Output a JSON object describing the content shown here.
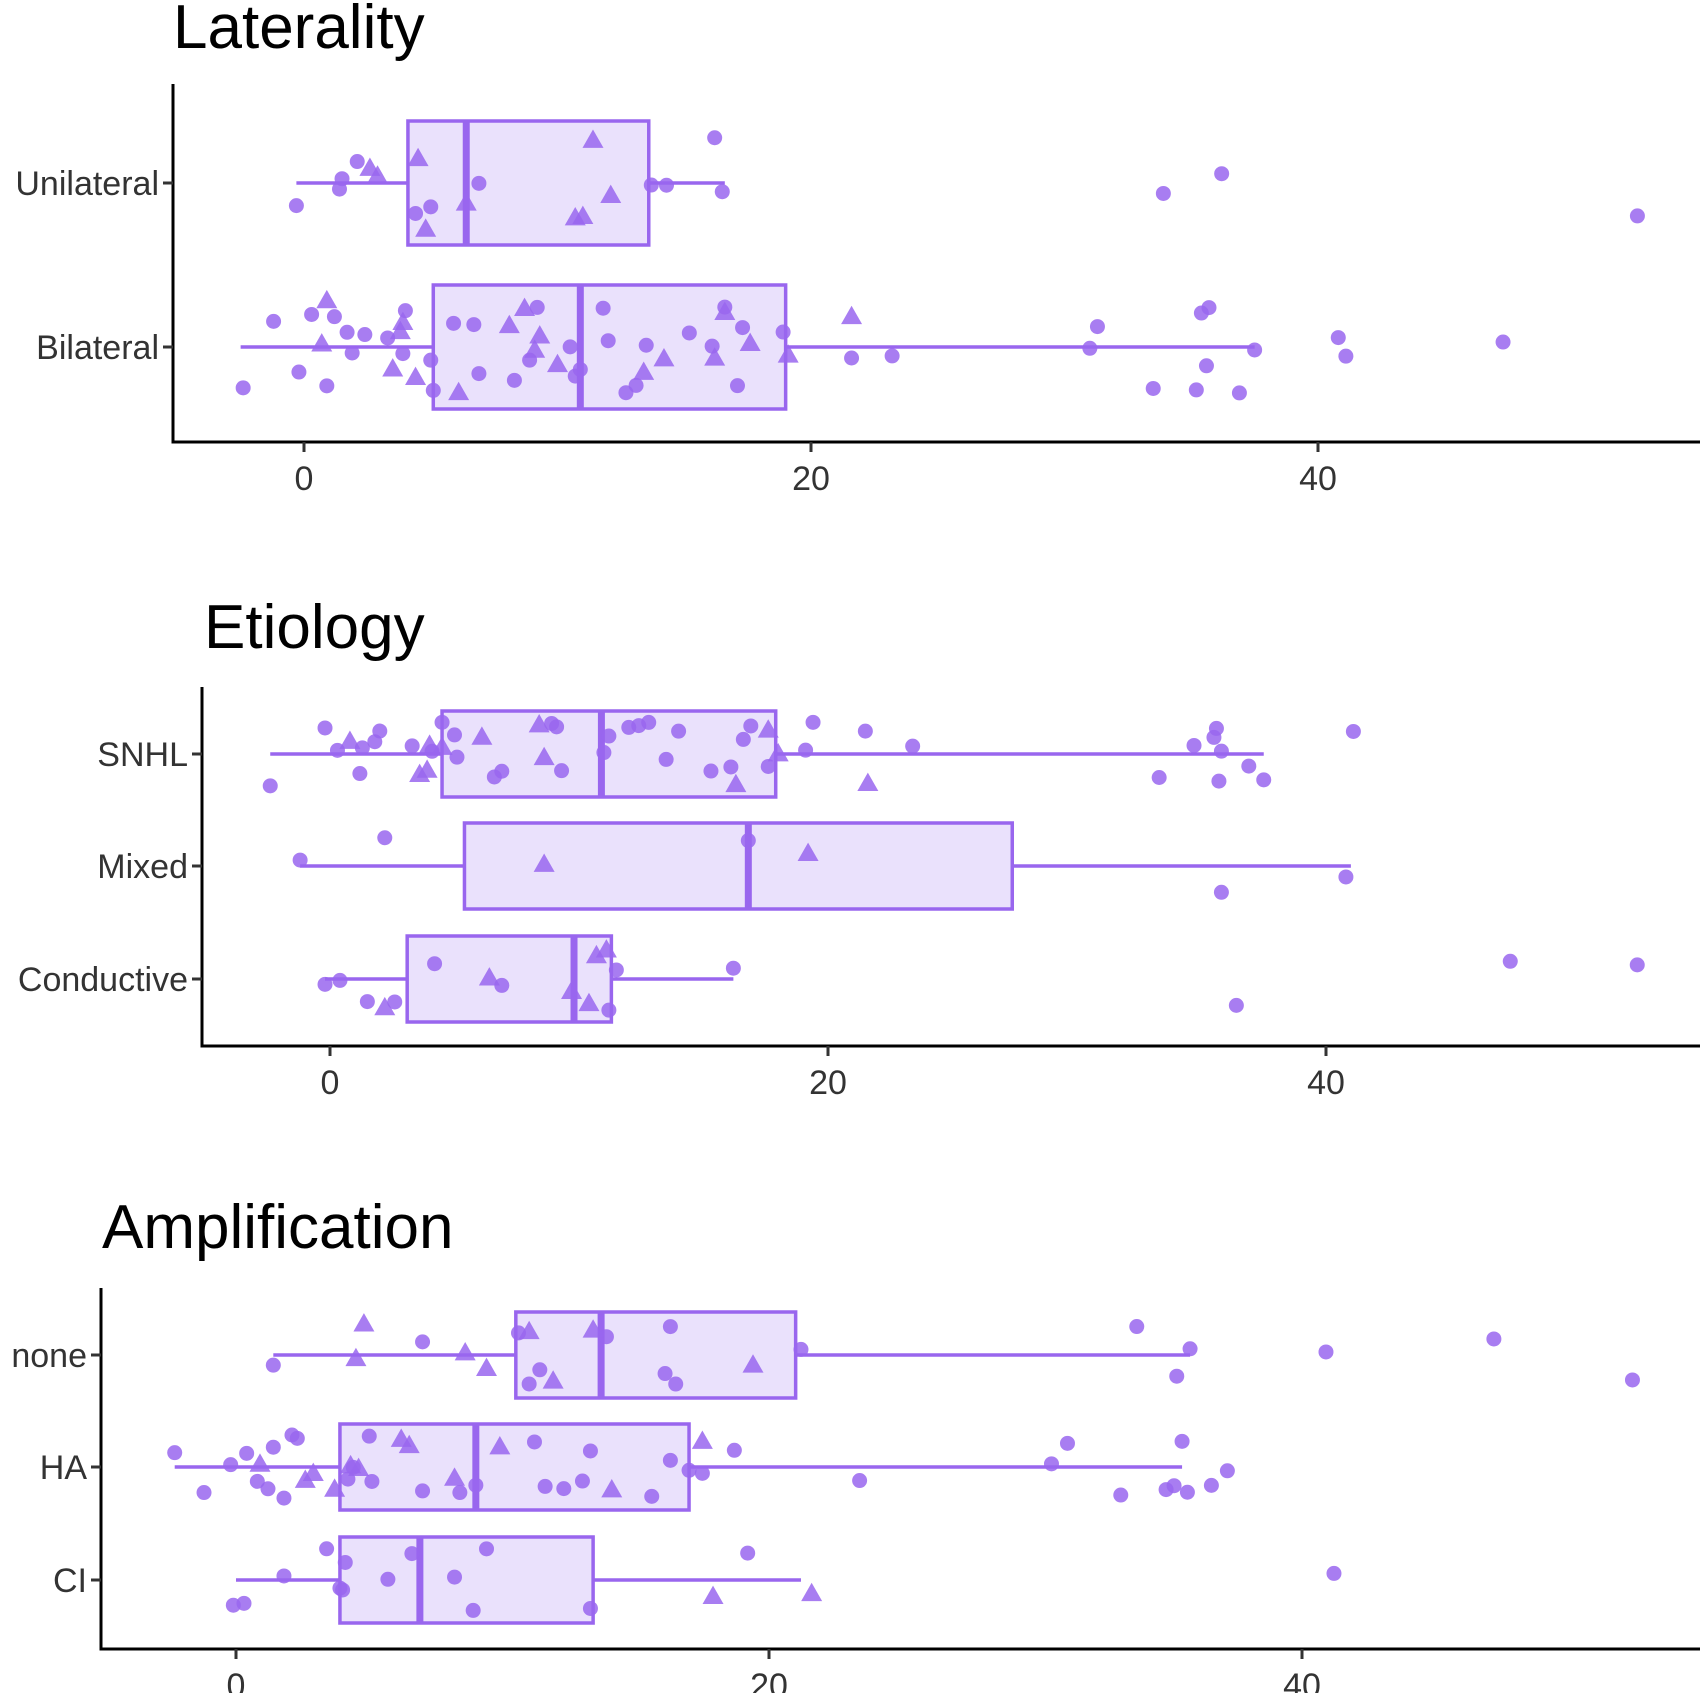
{
  "chart_data": [
    {
      "type": "boxplot",
      "title": "Laterality",
      "categories": [
        "Unilateral",
        "Bilateral"
      ],
      "xlim": [
        -5,
        55
      ],
      "xticks": [
        0,
        20,
        40
      ],
      "grid": false,
      "colors": {
        "stroke": "#9966ee",
        "fill": "#e6dcfb",
        "point": "#9966ee"
      },
      "boxes": [
        {
          "category": "Unilateral",
          "whisker_low": -0.3,
          "q1": 4.1,
          "median": 6.4,
          "q3": 13.6,
          "whisker_high": 16.6
        },
        {
          "category": "Bilateral",
          "whisker_low": -2.5,
          "q1": 5.1,
          "median": 10.9,
          "q3": 19.0,
          "whisker_high": 37.5
        }
      ],
      "points": [
        {
          "category": "Unilateral",
          "shape": "circle",
          "values": [
            -0.3,
            1.4,
            1.5,
            2.1,
            4.4,
            5.0,
            6.9,
            14.3,
            13.7,
            16.2,
            16.5,
            33.9,
            36.2,
            52.6
          ]
        },
        {
          "category": "Unilateral",
          "shape": "triangle",
          "values": [
            2.6,
            2.9,
            4.5,
            4.8,
            6.4,
            10.7,
            11.0,
            11.4,
            12.1
          ]
        },
        {
          "category": "Bilateral",
          "shape": "circle",
          "values": [
            -2.4,
            -1.2,
            -0.2,
            0.3,
            0.9,
            1.2,
            1.7,
            1.9,
            2.4,
            3.3,
            3.9,
            4.0,
            5.0,
            5.1,
            5.9,
            6.7,
            6.9,
            8.3,
            8.9,
            9.2,
            10.5,
            10.7,
            10.9,
            11.8,
            12.0,
            12.7,
            13.1,
            13.5,
            15.2,
            16.1,
            16.6,
            17.1,
            17.3,
            18.9,
            21.6,
            23.2,
            31.0,
            31.3,
            33.5,
            35.2,
            35.4,
            35.6,
            35.7,
            36.9,
            37.5,
            40.8,
            41.1,
            47.3
          ]
        },
        {
          "category": "Bilateral",
          "shape": "triangle",
          "values": [
            0.7,
            0.9,
            3.5,
            3.8,
            3.9,
            4.4,
            6.1,
            8.1,
            8.7,
            9.1,
            9.3,
            10.0,
            13.4,
            14.2,
            16.2,
            16.6,
            17.6,
            19.1,
            21.6
          ]
        }
      ]
    },
    {
      "type": "boxplot",
      "title": "Etiology",
      "categories": [
        "SNHL",
        "Mixed",
        "Conductive"
      ],
      "xlim": [
        -5,
        55
      ],
      "xticks": [
        0,
        20,
        40
      ],
      "grid": false,
      "colors": {
        "stroke": "#9966ee",
        "fill": "#e6dcfb",
        "point": "#9966ee"
      },
      "boxes": [
        {
          "category": "SNHL",
          "whisker_low": -2.4,
          "q1": 4.5,
          "median": 10.9,
          "q3": 17.9,
          "whisker_high": 37.5
        },
        {
          "category": "Mixed",
          "whisker_low": -1.2,
          "q1": 5.4,
          "median": 16.8,
          "q3": 27.4,
          "whisker_high": 41.0
        },
        {
          "category": "Conductive",
          "whisker_low": -0.2,
          "q1": 3.1,
          "median": 9.8,
          "q3": 11.3,
          "whisker_high": 16.2
        }
      ],
      "points": [
        {
          "category": "SNHL",
          "shape": "circle",
          "values": [
            -2.4,
            -0.2,
            0.3,
            1.2,
            1.3,
            1.8,
            2.0,
            3.3,
            4.1,
            4.5,
            5.0,
            5.1,
            6.6,
            6.9,
            8.9,
            9.1,
            9.3,
            11.0,
            11.2,
            12.0,
            12.4,
            12.8,
            13.5,
            14.0,
            15.3,
            16.1,
            16.6,
            16.9,
            17.6,
            19.1,
            19.4,
            21.5,
            23.4,
            33.3,
            34.7,
            35.5,
            35.6,
            35.7,
            35.8,
            36.9,
            37.5,
            41.1
          ]
        },
        {
          "category": "SNHL",
          "shape": "triangle",
          "values": [
            0.8,
            3.6,
            3.9,
            4.0,
            4.5,
            6.1,
            8.4,
            8.6,
            16.3,
            17.6,
            18.0,
            21.6
          ]
        },
        {
          "category": "Mixed",
          "shape": "circle",
          "values": [
            -1.2,
            2.2,
            16.8,
            35.8,
            40.8
          ]
        },
        {
          "category": "Mixed",
          "shape": "triangle",
          "values": [
            8.6,
            19.2
          ]
        },
        {
          "category": "Conductive",
          "shape": "circle",
          "values": [
            -0.2,
            0.4,
            1.5,
            2.6,
            4.2,
            6.9,
            11.2,
            11.5,
            16.2,
            36.4,
            47.4,
            52.5
          ]
        },
        {
          "category": "Conductive",
          "shape": "triangle",
          "values": [
            2.2,
            6.4,
            9.7,
            10.4,
            10.7,
            11.1
          ]
        }
      ]
    },
    {
      "type": "boxplot",
      "title": "Amplification",
      "categories": [
        "none",
        "HA",
        "CI"
      ],
      "xlim": [
        -5,
        55
      ],
      "xticks": [
        0,
        20,
        40
      ],
      "grid": false,
      "colors": {
        "stroke": "#9966ee",
        "fill": "#e6dcfb",
        "point": "#9966ee"
      },
      "boxes": [
        {
          "category": "none",
          "whisker_low": 1.4,
          "q1": 10.5,
          "median": 13.7,
          "q3": 21.0,
          "whisker_high": 35.8
        },
        {
          "category": "HA",
          "whisker_low": -2.3,
          "q1": 3.9,
          "median": 9.0,
          "q3": 17.0,
          "whisker_high": 35.5
        },
        {
          "category": "CI",
          "whisker_low": 0.0,
          "q1": 3.9,
          "median": 6.9,
          "q3": 13.4,
          "whisker_high": 21.2
        }
      ],
      "points": [
        {
          "category": "none",
          "shape": "circle",
          "values": [
            1.4,
            7.0,
            10.6,
            11.0,
            11.4,
            13.9,
            16.1,
            16.5,
            16.3,
            21.2,
            33.8,
            35.3,
            35.8,
            40.9,
            47.2,
            52.4
          ]
        },
        {
          "category": "none",
          "shape": "triangle",
          "values": [
            4.5,
            4.8,
            8.6,
            9.4,
            11.0,
            11.9,
            13.4,
            19.4
          ]
        },
        {
          "category": "HA",
          "shape": "circle",
          "values": [
            -2.3,
            -1.2,
            -0.2,
            0.4,
            0.8,
            1.2,
            1.4,
            1.8,
            2.1,
            2.3,
            4.2,
            4.4,
            5.0,
            5.1,
            7.0,
            8.4,
            9.0,
            11.2,
            11.6,
            12.3,
            13.0,
            13.3,
            15.6,
            16.3,
            17.0,
            17.5,
            18.7,
            23.4,
            30.6,
            31.2,
            33.2,
            34.9,
            35.2,
            35.5,
            35.7,
            36.6,
            37.2
          ]
        },
        {
          "category": "HA",
          "shape": "triangle",
          "values": [
            0.9,
            2.6,
            2.9,
            3.7,
            4.3,
            4.6,
            6.2,
            6.5,
            8.2,
            9.9,
            14.1,
            17.5
          ]
        },
        {
          "category": "CI",
          "shape": "circle",
          "values": [
            -0.1,
            0.3,
            1.8,
            3.4,
            3.9,
            4.0,
            4.1,
            5.7,
            6.6,
            8.2,
            8.9,
            9.4,
            13.3,
            19.2,
            41.2
          ]
        },
        {
          "category": "CI",
          "shape": "triangle",
          "values": [
            17.9,
            21.6
          ]
        }
      ]
    }
  ]
}
